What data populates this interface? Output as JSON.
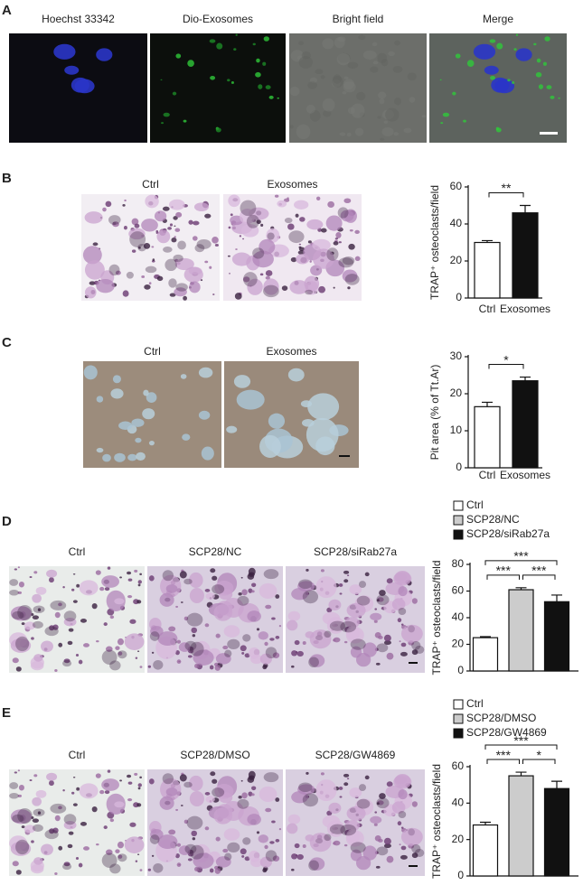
{
  "panels": [
    {
      "label": "A",
      "images": [
        "Hoechst 33342",
        "Dio-Exosomes",
        "Bright field",
        "Merge"
      ]
    },
    {
      "label": "B",
      "images": [
        "Ctrl",
        "Exosomes"
      ]
    },
    {
      "label": "C",
      "images": [
        "Ctrl",
        "Exosomes"
      ]
    },
    {
      "label": "D",
      "images": [
        "Ctrl",
        "SCP28/NC",
        "SCP28/siRab27a"
      ]
    },
    {
      "label": "E",
      "images": [
        "Ctrl",
        "SCP28/DMSO",
        "SCP28/GW4869"
      ]
    }
  ],
  "chart_data": [
    {
      "type": "bar",
      "y_label": "TRAP⁺ osteoclasts/field",
      "categories": [
        "Ctrl",
        "Exosomes"
      ],
      "values": [
        30,
        46
      ],
      "errors": [
        1,
        4
      ],
      "colors": [
        "#ffffff",
        "#111111"
      ],
      "ylim": [
        0,
        60
      ],
      "yticks": [
        0,
        20,
        40,
        60
      ],
      "annotations": [
        {
          "text": "**",
          "between": [
            0,
            1
          ]
        }
      ]
    },
    {
      "type": "bar",
      "y_label": "Pit area (% of  Tt.Ar)",
      "categories": [
        "Ctrl",
        "Exosomes"
      ],
      "values": [
        16.5,
        23.5
      ],
      "errors": [
        1.2,
        1
      ],
      "colors": [
        "#ffffff",
        "#111111"
      ],
      "ylim": [
        0,
        30
      ],
      "yticks": [
        0,
        10,
        20,
        30
      ],
      "annotations": [
        {
          "text": "*",
          "between": [
            0,
            1
          ]
        }
      ]
    },
    {
      "type": "bar",
      "y_label": "TRAP⁺ osteoclasts/field",
      "categories": [
        null,
        null,
        null
      ],
      "legend": [
        "Ctrl",
        "SCP28/NC",
        "SCP28/siRab27a"
      ],
      "values": [
        25,
        61,
        52
      ],
      "errors": [
        0.8,
        1.5,
        5
      ],
      "colors": [
        "#ffffff",
        "#cccccc",
        "#111111"
      ],
      "ylim": [
        0,
        80
      ],
      "yticks": [
        0,
        20,
        40,
        60,
        80
      ],
      "annotations": [
        {
          "text": "***",
          "between": [
            0,
            1
          ]
        },
        {
          "text": "***",
          "between": [
            1,
            2
          ]
        },
        {
          "text": "***",
          "between": [
            0,
            2
          ]
        }
      ]
    },
    {
      "type": "bar",
      "y_label": "TRAP⁺ osteoclasts/field",
      "categories": [
        null,
        null,
        null
      ],
      "legend": [
        "Ctrl",
        "SCP28/DMSO",
        "SCP28/GW4869"
      ],
      "values": [
        28,
        55,
        48
      ],
      "errors": [
        1.5,
        2,
        4
      ],
      "colors": [
        "#ffffff",
        "#cccccc",
        "#111111"
      ],
      "ylim": [
        0,
        60
      ],
      "yticks": [
        0,
        20,
        40,
        60
      ],
      "annotations": [
        {
          "text": "***",
          "between": [
            0,
            1
          ]
        },
        {
          "text": "*",
          "between": [
            1,
            2
          ]
        },
        {
          "text": "***",
          "between": [
            0,
            2
          ]
        }
      ]
    }
  ]
}
